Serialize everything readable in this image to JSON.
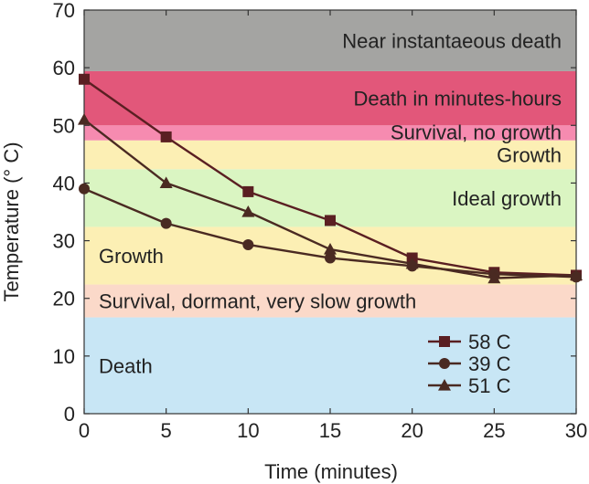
{
  "chart_data": {
    "type": "line",
    "title": "",
    "xlabel": "Time (minutes)",
    "ylabel": "Temperature (° C)",
    "xlim": [
      0,
      30
    ],
    "ylim": [
      0,
      70
    ],
    "x": [
      0,
      5,
      10,
      15,
      20,
      25,
      30
    ],
    "x_ticks": [
      0,
      5,
      10,
      15,
      20,
      25,
      30
    ],
    "y_ticks": [
      0,
      10,
      20,
      30,
      40,
      50,
      60,
      70
    ],
    "grid": false,
    "legend_position": "bottom-right",
    "bands": [
      {
        "label": "Death",
        "from": 0,
        "to": 16.7,
        "color": "#c8e6f5",
        "align": "left"
      },
      {
        "label": "Survival, dormant, very slow growth",
        "from": 16.7,
        "to": 22.4,
        "color": "#fbd9c9",
        "align": "left"
      },
      {
        "label": "Growth",
        "from": 22.4,
        "to": 32.4,
        "color": "#fcefb4",
        "align": "left"
      },
      {
        "label": "Ideal growth",
        "from": 32.4,
        "to": 42.4,
        "color": "#daf5c2",
        "align": "right"
      },
      {
        "label": "Growth",
        "from": 42.4,
        "to": 47.4,
        "color": "#fcefb4",
        "align": "right"
      },
      {
        "label": "Survival, no growth",
        "from": 47.4,
        "to": 50.0,
        "color": "#f68bb0",
        "align": "right"
      },
      {
        "label": "Death in minutes-hours",
        "from": 50.0,
        "to": 59.4,
        "color": "#e2577a",
        "align": "right"
      },
      {
        "label": "Near instantaeous death",
        "from": 59.4,
        "to": 70,
        "color": "#a4a4a2",
        "align": "right"
      }
    ],
    "series": [
      {
        "name": "58 C",
        "marker": "square",
        "values": [
          58,
          48,
          38.5,
          33.5,
          27,
          24.5,
          24
        ],
        "color": "#5a1f22"
      },
      {
        "name": "39 C",
        "marker": "circle",
        "values": [
          39,
          33,
          29.3,
          27,
          25.6,
          24.2,
          23.7
        ],
        "color": "#4a2a22"
      },
      {
        "name": "51 C",
        "marker": "triangle",
        "values": [
          51,
          40,
          35,
          28.5,
          26,
          23.5,
          24
        ],
        "color": "#4a2a22"
      }
    ]
  }
}
